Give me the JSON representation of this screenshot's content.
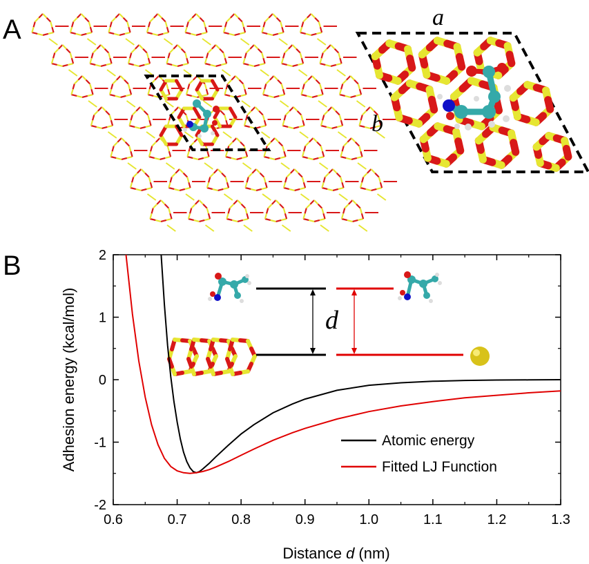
{
  "panels": {
    "a_label": "A",
    "b_label": "B"
  },
  "lattice": {
    "label_a": "a",
    "label_b": "b"
  },
  "inset": {
    "distance_symbol": "d"
  },
  "colors": {
    "silicon": "#e6e632",
    "oxygen": "#d81818",
    "carbon": "#35a9a9",
    "nitrogen": "#1010c8",
    "hydrogen": "#dddddd",
    "gold": "#d8c21a",
    "atomic_curve": "#000000",
    "lj_curve": "#e00000"
  },
  "chart_data": {
    "type": "line",
    "title": "",
    "xlabel_prefix": "Distance ",
    "xlabel_var": "d",
    "xlabel_suffix": " (nm)",
    "ylabel": "Adhesion energy (kcal/mol)",
    "xlim": [
      0.6,
      1.3
    ],
    "ylim": [
      -2,
      2
    ],
    "xticks": [
      "0.6",
      "0.7",
      "0.8",
      "0.9",
      "1.0",
      "1.1",
      "1.2",
      "1.3"
    ],
    "yticks": [
      "-2",
      "-1",
      "0",
      "1",
      "2"
    ],
    "legend_position": "bottom-right",
    "series": [
      {
        "name": "Atomic energy",
        "color": "#000000",
        "x": [
          0.675,
          0.68,
          0.685,
          0.69,
          0.695,
          0.7,
          0.705,
          0.71,
          0.715,
          0.72,
          0.725,
          0.73,
          0.735,
          0.74,
          0.75,
          0.76,
          0.78,
          0.8,
          0.82,
          0.85,
          0.88,
          0.9,
          0.95,
          1.0,
          1.05,
          1.1,
          1.15,
          1.2,
          1.25,
          1.3
        ],
        "y": [
          2.0,
          1.2,
          0.55,
          0.05,
          -0.35,
          -0.68,
          -0.95,
          -1.16,
          -1.31,
          -1.41,
          -1.47,
          -1.49,
          -1.47,
          -1.43,
          -1.34,
          -1.24,
          -1.05,
          -0.87,
          -0.72,
          -0.53,
          -0.39,
          -0.31,
          -0.17,
          -0.09,
          -0.05,
          -0.025,
          -0.012,
          -0.006,
          -0.003,
          0.0
        ]
      },
      {
        "name": "Fitted LJ Function",
        "color": "#e00000",
        "x": [
          0.62,
          0.63,
          0.64,
          0.65,
          0.66,
          0.67,
          0.68,
          0.69,
          0.7,
          0.71,
          0.72,
          0.73,
          0.74,
          0.75,
          0.76,
          0.78,
          0.8,
          0.82,
          0.85,
          0.88,
          0.9,
          0.95,
          1.0,
          1.05,
          1.1,
          1.15,
          1.2,
          1.25,
          1.3
        ],
        "y": [
          2.0,
          1.05,
          0.3,
          -0.28,
          -0.72,
          -1.04,
          -1.26,
          -1.39,
          -1.46,
          -1.49,
          -1.5,
          -1.49,
          -1.47,
          -1.44,
          -1.4,
          -1.31,
          -1.21,
          -1.11,
          -0.97,
          -0.85,
          -0.78,
          -0.63,
          -0.51,
          -0.42,
          -0.35,
          -0.29,
          -0.25,
          -0.21,
          -0.18
        ]
      }
    ]
  }
}
